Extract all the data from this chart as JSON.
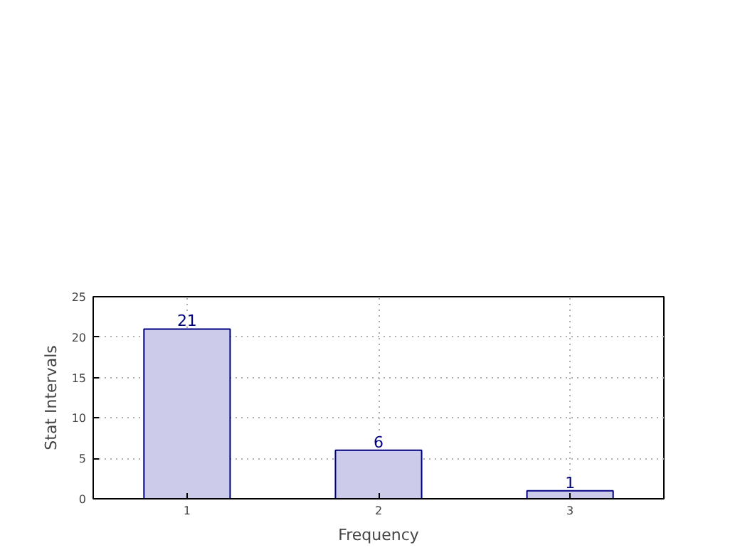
{
  "chart_data": {
    "type": "bar",
    "xlabel": "Frequency",
    "ylabel": "Stat Intervals",
    "categories": [
      "1",
      "2",
      "3"
    ],
    "series": [
      {
        "color": "#ccccea",
        "values": [
          21,
          6,
          1
        ]
      }
    ],
    "ylim": [
      0,
      25
    ],
    "yticks": [
      0,
      5,
      10,
      15,
      20,
      25
    ],
    "grid": true,
    "data_labels": true
  }
}
